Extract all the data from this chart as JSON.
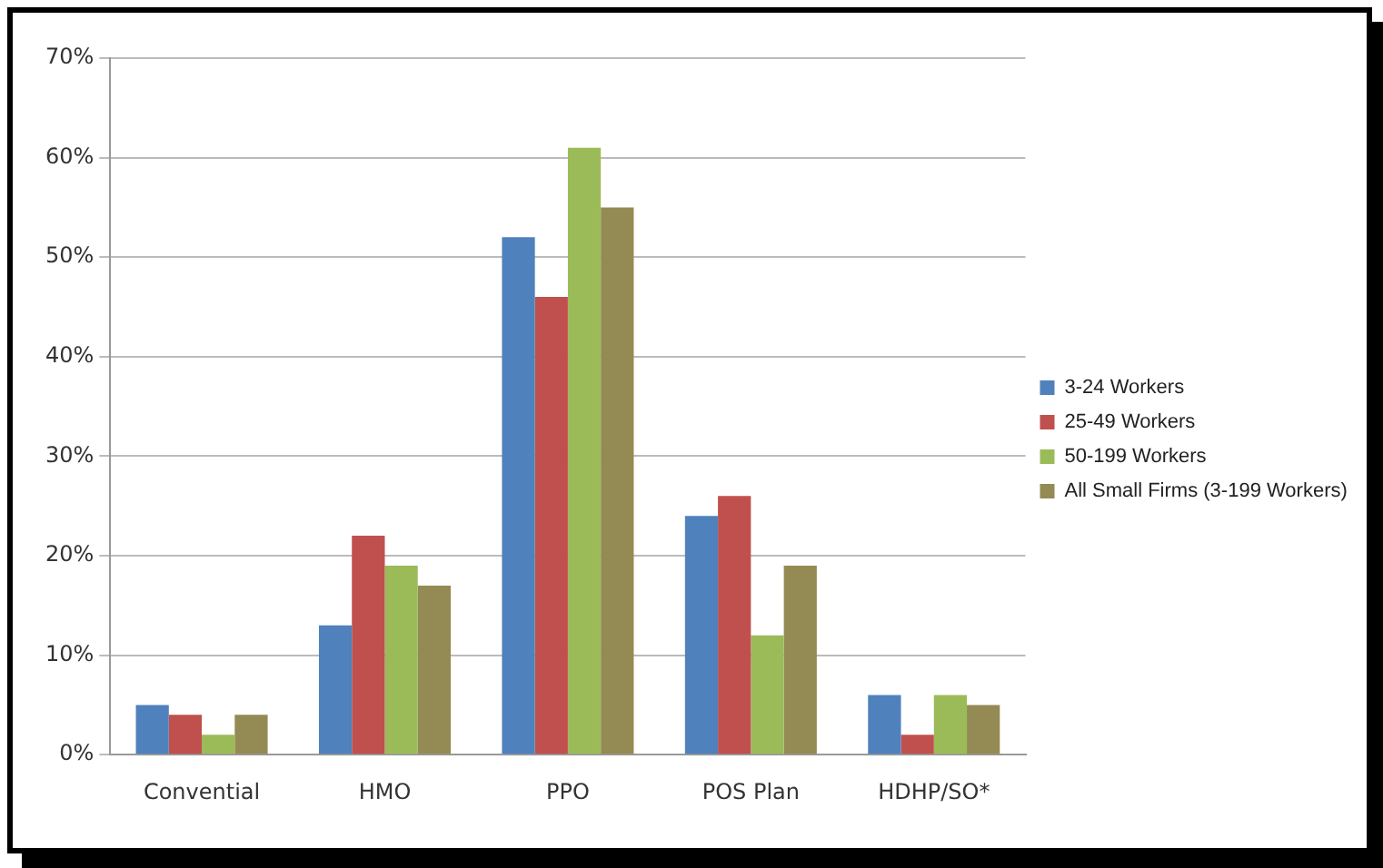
{
  "chart_data": {
    "type": "bar",
    "categories": [
      "Convential",
      "HMO",
      "PPO",
      "POS Plan",
      "HDHP/SO*"
    ],
    "series": [
      {
        "name": "3-24 Workers",
        "color": "#4f81bd",
        "values": [
          5,
          13,
          52,
          24,
          6
        ]
      },
      {
        "name": "25-49 Workers",
        "color": "#c0504d",
        "values": [
          4,
          22,
          46,
          26,
          2
        ]
      },
      {
        "name": "50-199 Workers",
        "color": "#9bbb59",
        "values": [
          2,
          19,
          61,
          12,
          6
        ]
      },
      {
        "name": "All Small Firms (3-199 Workers)",
        "color": "#948a54",
        "values": [
          4,
          17,
          55,
          19,
          5
        ]
      }
    ],
    "ylim": [
      0,
      70
    ],
    "yticks": [
      {
        "value": 0,
        "label": "0%"
      },
      {
        "value": 10,
        "label": "10%"
      },
      {
        "value": 20,
        "label": "20%"
      },
      {
        "value": 30,
        "label": "30%"
      },
      {
        "value": 40,
        "label": "40%"
      },
      {
        "value": 50,
        "label": "50%"
      },
      {
        "value": 60,
        "label": "60%"
      },
      {
        "value": 70,
        "label": "70%"
      }
    ],
    "grid": "y",
    "legend": "right"
  }
}
